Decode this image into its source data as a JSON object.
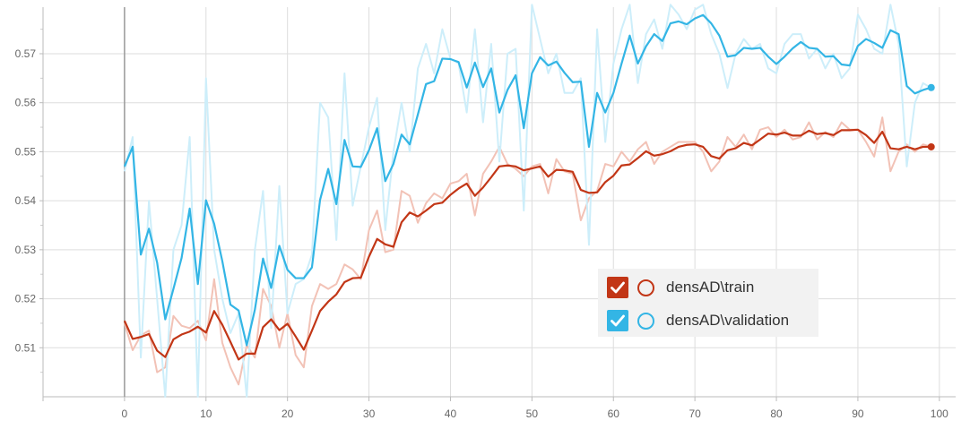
{
  "chart_data": {
    "type": "line",
    "title": "",
    "xlabel": "",
    "ylabel": "",
    "xlim": [
      -10,
      102
    ],
    "ylim": [
      0.5,
      0.5795
    ],
    "x_ticks": [
      0,
      10,
      20,
      30,
      40,
      50,
      60,
      70,
      80,
      90,
      100
    ],
    "y_ticks": [
      0.51,
      0.52,
      0.53,
      0.54,
      0.55,
      0.56,
      0.57
    ],
    "grid": true,
    "legend_position": "bottom-right",
    "series": [
      {
        "name": "densAD\\train",
        "color": "#c23616",
        "raw_color": "#f2c2b6",
        "x": [
          0,
          1,
          2,
          3,
          4,
          5,
          6,
          7,
          8,
          9,
          10,
          11,
          12,
          13,
          14,
          15,
          16,
          17,
          18,
          19,
          20,
          21,
          22,
          23,
          24,
          25,
          26,
          27,
          28,
          29,
          30,
          31,
          32,
          33,
          34,
          35,
          36,
          37,
          38,
          39,
          40,
          41,
          42,
          43,
          44,
          45,
          46,
          47,
          48,
          49,
          50,
          51,
          52,
          53,
          54,
          55,
          56,
          57,
          58,
          59,
          60,
          61,
          62,
          63,
          64,
          65,
          66,
          67,
          68,
          69,
          70,
          71,
          72,
          73,
          74,
          75,
          76,
          77,
          78,
          79,
          80,
          81,
          82,
          83,
          84,
          85,
          86,
          87,
          88,
          89,
          90,
          91,
          92,
          93,
          94,
          95,
          96,
          97,
          98,
          99
        ],
        "smoothed": [
          0.5155,
          0.5118,
          0.5122,
          0.5128,
          0.5094,
          0.5081,
          0.5117,
          0.5127,
          0.5133,
          0.5143,
          0.5131,
          0.5175,
          0.5147,
          0.5112,
          0.5076,
          0.5088,
          0.5088,
          0.5142,
          0.5158,
          0.5136,
          0.5149,
          0.5123,
          0.5096,
          0.5135,
          0.5175,
          0.5194,
          0.5209,
          0.5234,
          0.5242,
          0.5243,
          0.5286,
          0.5322,
          0.5311,
          0.5306,
          0.5356,
          0.5376,
          0.5368,
          0.538,
          0.5393,
          0.5396,
          0.5412,
          0.5425,
          0.5435,
          0.541,
          0.5427,
          0.5448,
          0.547,
          0.5472,
          0.547,
          0.5462,
          0.5466,
          0.547,
          0.5449,
          0.5463,
          0.5462,
          0.5459,
          0.5422,
          0.5416,
          0.5417,
          0.5438,
          0.5451,
          0.5472,
          0.5474,
          0.5487,
          0.5501,
          0.5492,
          0.5495,
          0.5501,
          0.551,
          0.5514,
          0.5515,
          0.551,
          0.5491,
          0.5486,
          0.5503,
          0.5507,
          0.5518,
          0.5513,
          0.5525,
          0.5537,
          0.5535,
          0.5539,
          0.5533,
          0.5533,
          0.5543,
          0.5536,
          0.5538,
          0.5534,
          0.5544,
          0.5544,
          0.5545,
          0.5534,
          0.5518,
          0.5541,
          0.5507,
          0.5505,
          0.551,
          0.5505,
          0.551,
          0.551
        ],
        "raw": [
          0.515,
          0.5095,
          0.5125,
          0.5135,
          0.505,
          0.506,
          0.5165,
          0.5145,
          0.514,
          0.5155,
          0.5115,
          0.524,
          0.511,
          0.506,
          0.5025,
          0.5105,
          0.508,
          0.522,
          0.5185,
          0.51,
          0.517,
          0.5085,
          0.506,
          0.5185,
          0.523,
          0.522,
          0.523,
          0.527,
          0.526,
          0.524,
          0.534,
          0.538,
          0.5295,
          0.53,
          0.542,
          0.541,
          0.5355,
          0.5395,
          0.5415,
          0.5405,
          0.5435,
          0.544,
          0.5455,
          0.537,
          0.5455,
          0.548,
          0.551,
          0.5475,
          0.5465,
          0.545,
          0.547,
          0.5475,
          0.5415,
          0.5485,
          0.546,
          0.5455,
          0.536,
          0.5405,
          0.542,
          0.5475,
          0.547,
          0.55,
          0.548,
          0.5505,
          0.552,
          0.5475,
          0.55,
          0.551,
          0.552,
          0.552,
          0.552,
          0.55,
          0.546,
          0.548,
          0.553,
          0.551,
          0.5535,
          0.5505,
          0.5545,
          0.555,
          0.553,
          0.5545,
          0.5525,
          0.553,
          0.556,
          0.5525,
          0.554,
          0.553,
          0.556,
          0.5545,
          0.5545,
          0.552,
          0.549,
          0.557,
          0.546,
          0.55,
          0.5515,
          0.55,
          0.5515,
          0.551
        ]
      },
      {
        "name": "densAD\\validation",
        "color": "#33b5e5",
        "raw_color": "#cdeefa",
        "x": [
          0,
          1,
          2,
          3,
          4,
          5,
          6,
          7,
          8,
          9,
          10,
          11,
          12,
          13,
          14,
          15,
          16,
          17,
          18,
          19,
          20,
          21,
          22,
          23,
          24,
          25,
          26,
          27,
          28,
          29,
          30,
          31,
          32,
          33,
          34,
          35,
          36,
          37,
          38,
          39,
          40,
          41,
          42,
          43,
          44,
          45,
          46,
          47,
          48,
          49,
          50,
          51,
          52,
          53,
          54,
          55,
          56,
          57,
          58,
          59,
          60,
          61,
          62,
          63,
          64,
          65,
          66,
          67,
          68,
          69,
          70,
          71,
          72,
          73,
          74,
          75,
          76,
          77,
          78,
          79,
          80,
          81,
          82,
          83,
          84,
          85,
          86,
          87,
          88,
          89,
          90,
          91,
          92,
          93,
          94,
          95,
          96,
          97,
          98,
          99
        ],
        "smoothed": [
          0.547,
          0.551,
          0.529,
          0.5343,
          0.5274,
          0.5158,
          0.522,
          0.5283,
          0.5384,
          0.523,
          0.5401,
          0.5353,
          0.5277,
          0.5188,
          0.5176,
          0.5105,
          0.5178,
          0.5282,
          0.5222,
          0.5308,
          0.5259,
          0.5242,
          0.5242,
          0.5264,
          0.5402,
          0.5465,
          0.5393,
          0.5524,
          0.547,
          0.5469,
          0.5503,
          0.5548,
          0.544,
          0.5475,
          0.5535,
          0.5515,
          0.5576,
          0.5638,
          0.5644,
          0.569,
          0.5689,
          0.5683,
          0.5631,
          0.5682,
          0.5632,
          0.567,
          0.558,
          0.5626,
          0.5656,
          0.5548,
          0.566,
          0.5693,
          0.5676,
          0.5684,
          0.5661,
          0.5642,
          0.5643,
          0.551,
          0.562,
          0.558,
          0.562,
          0.568,
          0.5737,
          0.568,
          0.5715,
          0.574,
          0.5726,
          0.5762,
          0.5766,
          0.576,
          0.5772,
          0.5779,
          0.5762,
          0.5737,
          0.5694,
          0.5697,
          0.5712,
          0.571,
          0.5712,
          0.5694,
          0.5679,
          0.5694,
          0.5711,
          0.5724,
          0.5712,
          0.571,
          0.5694,
          0.5695,
          0.5678,
          0.5676,
          0.5716,
          0.573,
          0.5722,
          0.5712,
          0.5748,
          0.574,
          0.5634,
          0.5619,
          0.5626,
          0.5631
        ],
        "raw": [
          0.546,
          0.553,
          0.508,
          0.54,
          0.52,
          0.5,
          0.53,
          0.535,
          0.553,
          0.5,
          0.565,
          0.53,
          0.52,
          0.513,
          0.517,
          0.5,
          0.53,
          0.542,
          0.514,
          0.543,
          0.517,
          0.523,
          0.524,
          0.529,
          0.56,
          0.557,
          0.532,
          0.566,
          0.539,
          0.547,
          0.555,
          0.561,
          0.534,
          0.55,
          0.56,
          0.55,
          0.567,
          0.572,
          0.566,
          0.575,
          0.569,
          0.568,
          0.558,
          0.575,
          0.556,
          0.572,
          0.548,
          0.57,
          0.571,
          0.538,
          0.58,
          0.573,
          0.566,
          0.57,
          0.562,
          0.562,
          0.565,
          0.531,
          0.575,
          0.552,
          0.568,
          0.575,
          0.58,
          0.564,
          0.574,
          0.577,
          0.571,
          0.58,
          0.578,
          0.575,
          0.579,
          0.58,
          0.574,
          0.57,
          0.563,
          0.57,
          0.573,
          0.571,
          0.572,
          0.567,
          0.566,
          0.572,
          0.574,
          0.574,
          0.569,
          0.571,
          0.567,
          0.57,
          0.565,
          0.567,
          0.578,
          0.575,
          0.571,
          0.57,
          0.58,
          0.572,
          0.547,
          0.56,
          0.564,
          0.563
        ]
      }
    ]
  },
  "legend": {
    "items": [
      {
        "label": "densAD\\train",
        "color": "#c23616"
      },
      {
        "label": "densAD\\validation",
        "color": "#33b5e5"
      }
    ]
  }
}
